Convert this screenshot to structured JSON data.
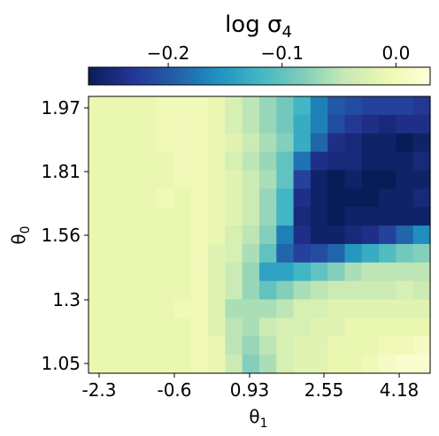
{
  "chart_data": {
    "type": "heatmap",
    "title": "log σ4",
    "title_parts": {
      "main": "log σ",
      "sub": "4"
    },
    "xlabel": "θ1",
    "xlabel_parts": {
      "main": "θ",
      "sub": "1"
    },
    "ylabel": "θ0",
    "ylabel_parts": {
      "main": "θ",
      "sub": "0"
    },
    "x_ticks": [
      "-2.3",
      "-0.6",
      "0.93",
      "2.55",
      "4.18"
    ],
    "y_ticks": [
      "1.97",
      "1.81",
      "1.56",
      "1.3",
      "1.05"
    ],
    "colorbar": {
      "ticks": [
        "−0.2",
        "−0.1",
        "0.0"
      ],
      "tick_values": [
        -0.2,
        -0.1,
        0.0
      ],
      "range": [
        -0.27,
        0.03
      ],
      "colormap": "YlGnBu_r",
      "colors": [
        "#081d58",
        "#253494",
        "#225ea8",
        "#1d91c0",
        "#41b6c4",
        "#7fcdbb",
        "#c7e9b4",
        "#edf8b1",
        "#ffffd9"
      ]
    },
    "grid": {
      "cols": 20,
      "rows": 15,
      "row_order": "top-to-bottom",
      "values": [
        [
          -0.01,
          -0.01,
          -0.01,
          -0.01,
          0.0,
          0.0,
          0.0,
          -0.01,
          -0.03,
          -0.05,
          -0.07,
          -0.09,
          -0.12,
          -0.17,
          -0.2,
          -0.21,
          -0.22,
          -0.22,
          -0.22,
          -0.23
        ],
        [
          -0.01,
          -0.01,
          -0.01,
          -0.01,
          0.0,
          0.0,
          0.0,
          -0.01,
          -0.03,
          -0.05,
          -0.07,
          -0.09,
          -0.13,
          -0.17,
          -0.21,
          -0.23,
          -0.24,
          -0.25,
          -0.24,
          -0.24
        ],
        [
          -0.01,
          -0.01,
          -0.01,
          -0.01,
          0.0,
          0.0,
          0.0,
          -0.01,
          -0.02,
          -0.04,
          -0.06,
          -0.08,
          -0.13,
          -0.19,
          -0.24,
          -0.25,
          -0.26,
          -0.26,
          -0.27,
          -0.26
        ],
        [
          -0.01,
          -0.01,
          -0.01,
          -0.01,
          -0.01,
          0.0,
          0.0,
          -0.01,
          -0.03,
          -0.05,
          -0.07,
          -0.1,
          -0.18,
          -0.24,
          -0.25,
          -0.25,
          -0.26,
          -0.26,
          -0.26,
          -0.25
        ],
        [
          -0.01,
          -0.01,
          -0.01,
          -0.01,
          -0.01,
          0.0,
          0.0,
          -0.01,
          -0.02,
          -0.04,
          -0.06,
          -0.1,
          -0.22,
          -0.26,
          -0.27,
          -0.26,
          -0.27,
          -0.27,
          -0.26,
          -0.26
        ],
        [
          -0.01,
          -0.01,
          -0.01,
          -0.01,
          0.0,
          -0.01,
          0.0,
          -0.01,
          -0.02,
          -0.04,
          -0.07,
          -0.12,
          -0.24,
          -0.26,
          -0.27,
          -0.27,
          -0.27,
          -0.26,
          -0.26,
          -0.25
        ],
        [
          -0.01,
          -0.01,
          -0.01,
          -0.01,
          -0.01,
          -0.01,
          0.0,
          -0.01,
          -0.02,
          -0.04,
          -0.07,
          -0.12,
          -0.25,
          -0.26,
          -0.27,
          -0.26,
          -0.26,
          -0.26,
          -0.26,
          -0.26
        ],
        [
          -0.01,
          -0.01,
          -0.01,
          -0.01,
          -0.01,
          -0.01,
          0.0,
          -0.01,
          -0.03,
          -0.05,
          -0.08,
          -0.17,
          -0.24,
          -0.26,
          -0.26,
          -0.25,
          -0.24,
          -0.22,
          -0.19,
          -0.16
        ],
        [
          -0.01,
          -0.01,
          -0.01,
          -0.01,
          -0.01,
          -0.01,
          0.0,
          -0.02,
          -0.03,
          -0.06,
          -0.1,
          -0.19,
          -0.22,
          -0.21,
          -0.19,
          -0.15,
          -0.13,
          -0.11,
          -0.09,
          -0.08
        ],
        [
          -0.01,
          -0.01,
          -0.01,
          -0.01,
          -0.01,
          -0.01,
          0.0,
          -0.02,
          -0.04,
          -0.07,
          -0.14,
          -0.14,
          -0.12,
          -0.1,
          -0.08,
          -0.06,
          -0.05,
          -0.05,
          -0.05,
          -0.05
        ],
        [
          -0.01,
          -0.01,
          -0.01,
          -0.01,
          -0.01,
          -0.01,
          0.0,
          -0.02,
          -0.04,
          -0.07,
          -0.1,
          -0.08,
          -0.06,
          -0.05,
          -0.04,
          -0.04,
          -0.04,
          -0.04,
          -0.03,
          -0.04
        ],
        [
          -0.01,
          -0.01,
          -0.01,
          -0.01,
          -0.01,
          0.0,
          0.0,
          -0.02,
          -0.06,
          -0.06,
          -0.06,
          -0.05,
          -0.03,
          -0.03,
          -0.02,
          -0.02,
          -0.02,
          -0.02,
          -0.02,
          -0.02
        ],
        [
          -0.01,
          -0.01,
          -0.01,
          -0.01,
          -0.01,
          -0.01,
          0.0,
          -0.02,
          -0.05,
          -0.06,
          -0.04,
          -0.03,
          -0.03,
          -0.02,
          -0.02,
          -0.01,
          -0.01,
          -0.01,
          -0.01,
          -0.01
        ],
        [
          -0.01,
          -0.01,
          -0.01,
          -0.01,
          -0.01,
          -0.01,
          0.0,
          -0.01,
          -0.05,
          -0.07,
          -0.05,
          -0.03,
          -0.02,
          -0.02,
          -0.01,
          -0.01,
          -0.01,
          0.0,
          0.0,
          0.01
        ],
        [
          -0.01,
          -0.01,
          -0.01,
          -0.01,
          -0.01,
          -0.01,
          0.0,
          -0.01,
          -0.04,
          -0.08,
          -0.06,
          -0.03,
          -0.02,
          -0.02,
          -0.01,
          -0.01,
          0.0,
          0.01,
          0.02,
          0.02
        ]
      ]
    }
  }
}
